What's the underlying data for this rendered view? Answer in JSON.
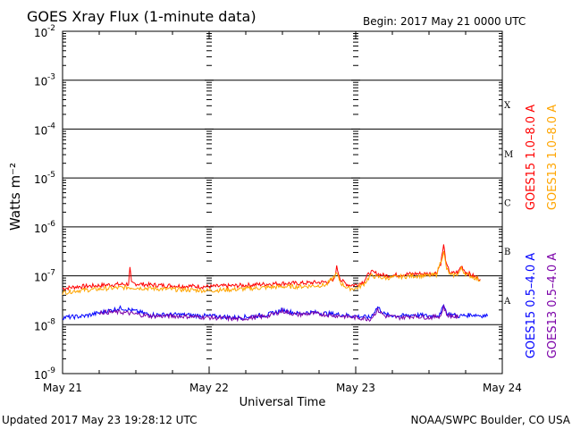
{
  "header": {
    "title": "GOES Xray Flux (1-minute data)",
    "begin": "Begin:  2017 May 21 0000 UTC"
  },
  "footer": {
    "updated": "Updated 2017 May 23 19:28:12 UTC",
    "credit": "NOAA/SWPC Boulder, CO USA"
  },
  "chart_data": {
    "type": "line",
    "title": "GOES Xray Flux (1-minute data)",
    "xlabel": "Universal Time",
    "ylabel": "Watts m⁻²",
    "yscale": "log",
    "ylim": [
      1e-09,
      0.01
    ],
    "xlim": [
      0,
      3
    ],
    "x_ticks": [
      {
        "x": 0,
        "label": "May 21"
      },
      {
        "x": 1,
        "label": "May 22"
      },
      {
        "x": 2,
        "label": "May 23"
      },
      {
        "x": 3,
        "label": "May 24"
      }
    ],
    "y_ticks": [
      {
        "base": "10",
        "exp": "-9"
      },
      {
        "base": "10",
        "exp": "-8"
      },
      {
        "base": "10",
        "exp": "-7"
      },
      {
        "base": "10",
        "exp": "-6"
      },
      {
        "base": "10",
        "exp": "-5"
      },
      {
        "base": "10",
        "exp": "-4"
      },
      {
        "base": "10",
        "exp": "-3"
      },
      {
        "base": "10",
        "exp": "-2"
      }
    ],
    "flare_classes": [
      {
        "label": "A",
        "level": 1e-08
      },
      {
        "label": "B",
        "level": 1e-07
      },
      {
        "label": "C",
        "level": 1e-06
      },
      {
        "label": "M",
        "level": 1e-05
      },
      {
        "label": "X",
        "level": 0.0001
      }
    ],
    "grid_levels": [
      1e-08,
      1e-07,
      1e-06,
      1e-05,
      0.0001,
      0.001
    ],
    "legend_position": "right",
    "series": [
      {
        "name": "GOES15 1.0–8.0 A",
        "color": "#ff0000",
        "x": [
          0,
          0.1,
          0.2,
          0.3,
          0.45,
          0.46,
          0.47,
          0.6,
          0.8,
          1.0,
          1.2,
          1.4,
          1.5,
          1.6,
          1.7,
          1.8,
          1.85,
          1.87,
          1.9,
          1.95,
          2.0,
          2.05,
          2.1,
          2.2,
          2.3,
          2.4,
          2.5,
          2.55,
          2.58,
          2.6,
          2.62,
          2.65,
          2.7,
          2.72,
          2.75,
          2.8,
          2.85
        ],
        "y": [
          5.5e-08,
          6e-08,
          6.2e-08,
          6.5e-08,
          6.8e-08,
          1.4e-07,
          7e-08,
          6.5e-08,
          6.2e-08,
          6e-08,
          6.3e-08,
          6.8e-08,
          7e-08,
          7e-08,
          7.2e-08,
          7.5e-08,
          8e-08,
          1.5e-07,
          8e-08,
          6.5e-08,
          6.5e-08,
          7.5e-08,
          1.2e-07,
          1e-07,
          1.05e-07,
          1.1e-07,
          1.1e-07,
          1.15e-07,
          1.8e-07,
          4.2e-07,
          1.6e-07,
          1.1e-07,
          1.2e-07,
          1.6e-07,
          1.2e-07,
          1e-07,
          8.5e-08
        ]
      },
      {
        "name": "GOES13 1.0–8.0 A",
        "color": "#ffa500",
        "x": [
          0,
          0.1,
          0.2,
          0.3,
          0.45,
          0.6,
          0.8,
          1.0,
          1.2,
          1.4,
          1.5,
          1.6,
          1.7,
          1.8,
          1.87,
          1.9,
          1.95,
          2.0,
          2.05,
          2.1,
          2.2,
          2.3,
          2.4,
          2.5,
          2.55,
          2.6,
          2.62,
          2.65,
          2.7,
          2.72,
          2.75,
          2.8,
          2.85
        ],
        "y": [
          4.5e-08,
          5e-08,
          5.2e-08,
          5.5e-08,
          5.8e-08,
          5.5e-08,
          5.2e-08,
          5e-08,
          5.3e-08,
          5.8e-08,
          6e-08,
          6e-08,
          6.2e-08,
          6.5e-08,
          1.1e-07,
          7e-08,
          5.5e-08,
          5.5e-08,
          6.5e-08,
          1e-07,
          9e-08,
          9.5e-08,
          1e-07,
          1e-07,
          1.05e-07,
          3e-07,
          1.4e-07,
          1e-07,
          1.1e-07,
          1.4e-07,
          1.1e-07,
          9.5e-08,
          8e-08
        ]
      },
      {
        "name": "GOES15 0.5–4.0 A",
        "color": "#0000ff",
        "x": [
          0,
          0.15,
          0.4,
          0.6,
          0.8,
          1.0,
          1.2,
          1.4,
          1.5,
          1.6,
          1.7,
          1.8,
          1.9,
          2.0,
          2.1,
          2.15,
          2.2,
          2.3,
          2.4,
          2.5,
          2.58,
          2.6,
          2.62,
          2.7,
          2.8,
          2.9
        ],
        "y": [
          1.4e-08,
          1.5e-08,
          2.2e-08,
          1.6e-08,
          1.6e-08,
          1.5e-08,
          1.4e-08,
          1.6e-08,
          2e-08,
          1.7e-08,
          1.8e-08,
          1.7e-08,
          1.6e-08,
          1.5e-08,
          1.4e-08,
          2.3e-08,
          1.6e-08,
          1.5e-08,
          1.6e-08,
          1.5e-08,
          1.6e-08,
          2.8e-08,
          1.7e-08,
          1.5e-08,
          1.6e-08,
          1.5e-08
        ]
      },
      {
        "name": "GOES13 0.5–4.0 A",
        "color": "#7b00a8",
        "x": [
          0.25,
          0.4,
          0.6,
          0.8,
          1.0,
          1.2,
          1.4,
          1.5,
          1.6,
          1.7,
          1.8,
          1.9,
          2.0,
          2.1,
          2.15,
          2.2,
          2.3,
          2.4,
          2.5,
          2.58,
          2.6,
          2.62,
          2.7
        ],
        "y": [
          1.8e-08,
          1.8e-08,
          1.5e-08,
          1.5e-08,
          1.4e-08,
          1.3e-08,
          1.5e-08,
          1.9e-08,
          1.6e-08,
          1.7e-08,
          1.6e-08,
          1.5e-08,
          1.4e-08,
          1.3e-08,
          2e-08,
          1.5e-08,
          1.4e-08,
          1.5e-08,
          1.4e-08,
          1.5e-08,
          2.4e-08,
          1.6e-08,
          1.4e-08
        ]
      }
    ]
  }
}
